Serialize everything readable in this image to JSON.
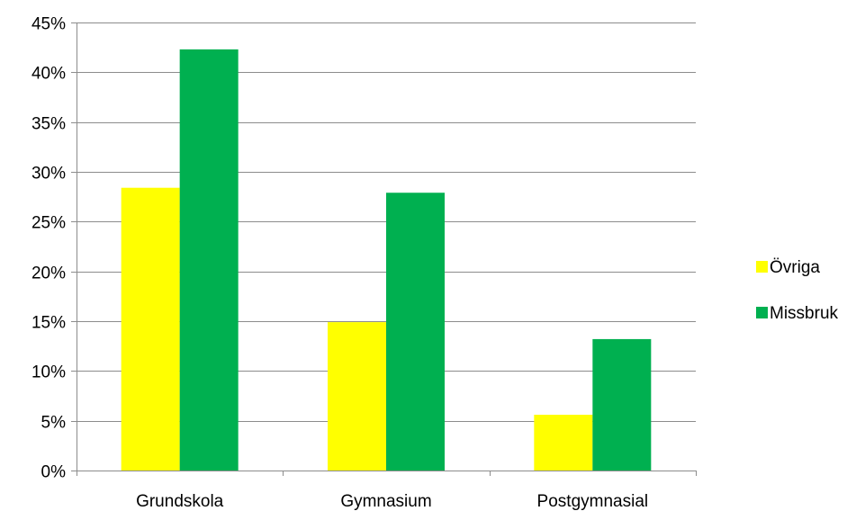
{
  "chart_data": {
    "type": "bar",
    "title": "",
    "xlabel": "",
    "ylabel": "",
    "categories": [
      "Grundskola",
      "Gymnasium",
      "Postgymnasial"
    ],
    "series": [
      {
        "name": "Övriga",
        "color": "#ffff00",
        "values": [
          0.284,
          0.149,
          0.056
        ]
      },
      {
        "name": "Missbruk",
        "color": "#00b050",
        "values": [
          0.423,
          0.279,
          0.132
        ]
      }
    ],
    "ylim": [
      0,
      0.45
    ],
    "yticks": [
      0,
      0.05,
      0.1,
      0.15,
      0.2,
      0.25,
      0.3,
      0.35,
      0.4,
      0.45
    ],
    "ytick_labels": [
      "0%",
      "5%",
      "10%",
      "15%",
      "20%",
      "25%",
      "30%",
      "35%",
      "40%",
      "45%"
    ],
    "grid": true,
    "legend_position": "right"
  }
}
